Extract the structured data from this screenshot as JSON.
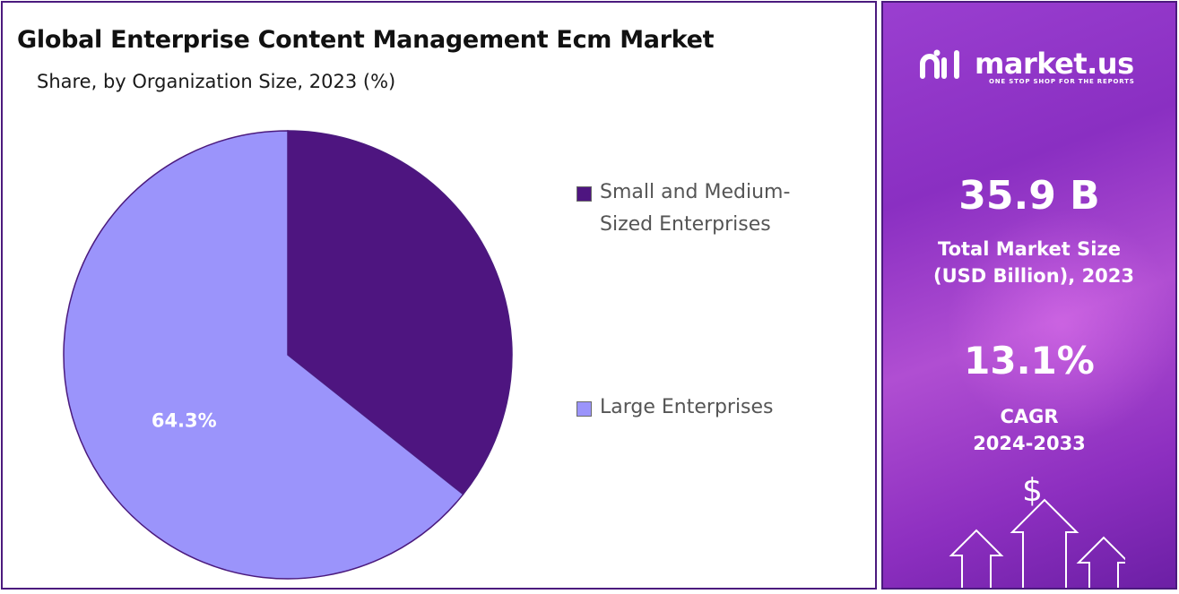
{
  "title": "Global Enterprise Content Management Ecm Market",
  "subtitle": "Share, by Organization Size, 2023 (%)",
  "chart_data": {
    "type": "pie",
    "title": "Global Enterprise Content Management Ecm Market",
    "subtitle": "Share, by Organization Size, 2023 (%)",
    "categories": [
      "Small and Medium-Sized Enterprises",
      "Large Enterprises"
    ],
    "values": [
      35.7,
      64.3
    ],
    "data_labels": [
      "",
      "64.3%"
    ],
    "colors": [
      "#4e1580",
      "#9b94fb"
    ],
    "legend_position": "right"
  },
  "legend": [
    {
      "label": "Small and Medium-Sized Enterprises",
      "color": "#4e1580"
    },
    {
      "label": "Large Enterprises",
      "color": "#9b94fb"
    }
  ],
  "sidebar": {
    "brand_name": "market.us",
    "brand_tagline": "ONE STOP SHOP FOR THE REPORTS",
    "market_size_value": "35.9 B",
    "market_size_label_line1": "Total Market Size",
    "market_size_label_line2": "(USD Billion), 2023",
    "cagr_value": "13.1%",
    "cagr_label_line1": "CAGR",
    "cagr_label_line2": "2024-2033",
    "dollar_symbol": "$",
    "icons": [
      "market-us-logo-icon",
      "dollar-icon",
      "growth-arrows-icon"
    ]
  }
}
